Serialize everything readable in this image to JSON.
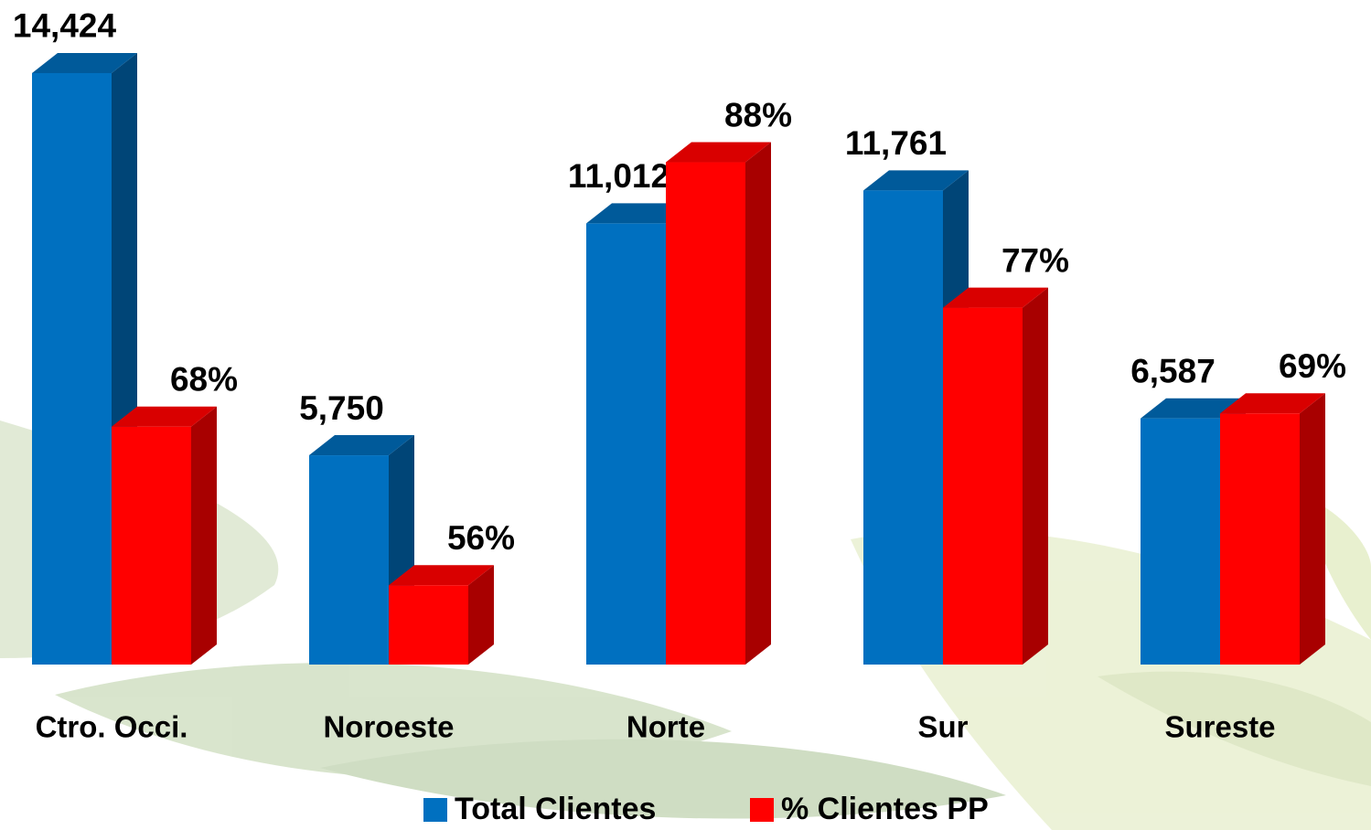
{
  "chart_data": {
    "type": "bar3d",
    "categories": [
      "Ctro. Occi.",
      "Noroeste",
      "Norte",
      "Sur",
      "Sureste"
    ],
    "series": [
      {
        "name": "Total Clientes",
        "color": "#0070c0",
        "values": [
          14424,
          5750,
          11012,
          11761,
          6587
        ],
        "value_labels": [
          "14,424",
          "5,750",
          "11,012",
          "11,761",
          "6,587"
        ]
      },
      {
        "name": "% Clientes PP",
        "color": "#ff0000",
        "axis": "y2",
        "values": [
          68,
          56,
          88,
          77,
          69
        ],
        "value_labels": [
          "68%",
          "56%",
          "88%",
          "77%",
          "69%"
        ]
      }
    ],
    "ylim": [
      1000,
      16000
    ],
    "y2lim": [
      50,
      100
    ]
  }
}
